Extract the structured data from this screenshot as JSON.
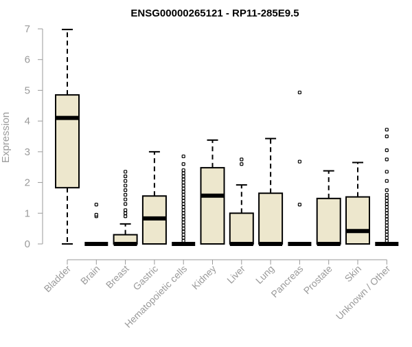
{
  "chart_data": {
    "type": "box",
    "title": "ENSG00000265121 - RP11-285E9.5",
    "ylabel": "Expression",
    "xlabel": "",
    "ylim": [
      0,
      7
    ],
    "yticks": [
      0,
      1,
      2,
      3,
      4,
      5,
      6,
      7
    ],
    "grid": false,
    "colors": {
      "box_fill": "#ede7cd",
      "stroke": "#000000",
      "axis_text": "#9a9a9a"
    },
    "categories": [
      "Bladder",
      "Brain",
      "Breast",
      "Gastric",
      "Hematopoietic cells",
      "Kidney",
      "Liver",
      "Lung",
      "Pancreas",
      "Prostate",
      "Skin",
      "Unknown / Other"
    ],
    "boxes": [
      {
        "category": "Bladder",
        "min": 0.0,
        "q1": 1.83,
        "median": 4.1,
        "q3": 4.85,
        "max": 6.98,
        "outliers": []
      },
      {
        "category": "Brain",
        "min": 0.0,
        "q1": 0.0,
        "median": 0.0,
        "q3": 0.0,
        "max": 0.0,
        "outliers": [
          0.9,
          0.95,
          1.28
        ]
      },
      {
        "category": "Breast",
        "min": 0.0,
        "q1": 0.0,
        "median": 0.0,
        "q3": 0.3,
        "max": 0.65,
        "outliers": [
          0.9,
          1.0,
          1.1,
          1.3,
          1.45,
          1.6,
          1.75,
          1.9,
          2.05,
          2.2,
          2.35
        ]
      },
      {
        "category": "Gastric",
        "min": 0.0,
        "q1": 0.0,
        "median": 0.83,
        "q3": 1.56,
        "max": 3.0,
        "outliers": []
      },
      {
        "category": "Hematopoietic cells",
        "min": 0.0,
        "q1": 0.0,
        "median": 0.0,
        "q3": 0.0,
        "max": 0.0,
        "outliers": [
          0.1,
          0.2,
          0.3,
          0.4,
          0.5,
          0.6,
          0.7,
          0.8,
          0.9,
          1.0,
          1.1,
          1.2,
          1.3,
          1.4,
          1.5,
          1.6,
          1.7,
          1.8,
          1.9,
          2.0,
          2.1,
          2.2,
          2.3,
          2.4,
          2.6,
          2.85
        ]
      },
      {
        "category": "Kidney",
        "min": 0.0,
        "q1": 0.0,
        "median": 1.57,
        "q3": 2.48,
        "max": 3.38,
        "outliers": []
      },
      {
        "category": "Liver",
        "min": 0.0,
        "q1": 0.0,
        "median": 0.0,
        "q3": 1.0,
        "max": 1.92,
        "outliers": [
          2.6,
          2.75
        ]
      },
      {
        "category": "Lung",
        "min": 0.0,
        "q1": 0.0,
        "median": 0.0,
        "q3": 1.65,
        "max": 3.43,
        "outliers": []
      },
      {
        "category": "Pancreas",
        "min": 0.0,
        "q1": 0.0,
        "median": 0.0,
        "q3": 0.0,
        "max": 0.0,
        "outliers": [
          1.28,
          2.68,
          4.93
        ]
      },
      {
        "category": "Prostate",
        "min": 0.0,
        "q1": 0.0,
        "median": 0.0,
        "q3": 1.48,
        "max": 2.38,
        "outliers": []
      },
      {
        "category": "Skin",
        "min": 0.0,
        "q1": 0.0,
        "median": 0.42,
        "q3": 1.53,
        "max": 2.65,
        "outliers": []
      },
      {
        "category": "Unknown / Other",
        "min": 0.0,
        "q1": 0.0,
        "median": 0.0,
        "q3": 0.0,
        "max": 0.0,
        "outliers": [
          0.1,
          0.2,
          0.3,
          0.4,
          0.5,
          0.6,
          0.7,
          0.8,
          0.9,
          1.0,
          1.1,
          1.2,
          1.3,
          1.4,
          1.5,
          1.6,
          1.75,
          2.05,
          2.35,
          2.75,
          3.05,
          3.5,
          3.72
        ]
      }
    ]
  }
}
